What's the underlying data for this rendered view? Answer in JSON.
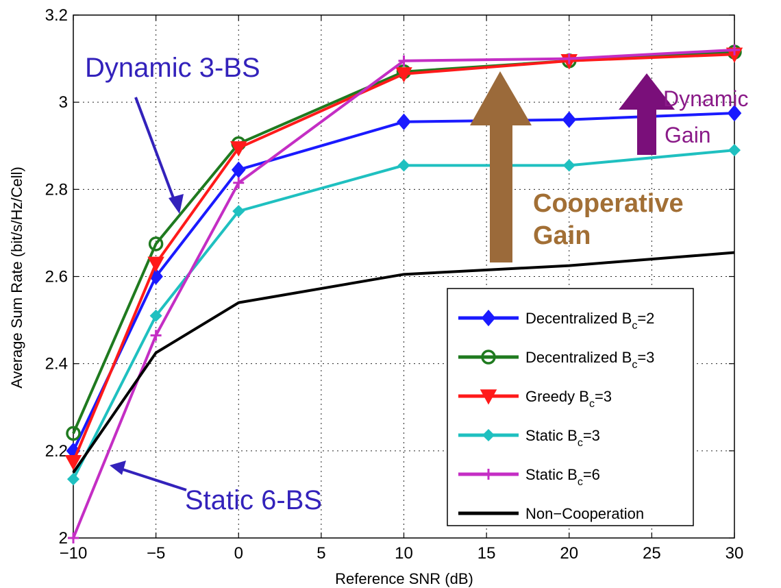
{
  "chart_data": {
    "type": "line",
    "xlabel": "Reference SNR (dB)",
    "ylabel": "Average Sum Rate (bit/s/Hz/Cell)",
    "xlim": [
      -10,
      30
    ],
    "ylim": [
      2,
      3.2
    ],
    "xticks": [
      -10,
      -5,
      0,
      5,
      10,
      15,
      20,
      25,
      30
    ],
    "yticks": [
      2,
      2.2,
      2.4,
      2.6,
      2.8,
      3,
      3.2
    ],
    "xtick_labels": [
      "−10",
      "−5",
      "0",
      "5",
      "10",
      "15",
      "20",
      "25",
      "30"
    ],
    "ytick_labels": [
      "2",
      "2.2",
      "2.4",
      "2.6",
      "2.8",
      "3",
      "3.2"
    ],
    "grid": true,
    "legend_position": "bottom-right",
    "x": [
      -10,
      -5,
      0,
      10,
      20,
      30
    ],
    "series": [
      {
        "name": "Decentralized B",
        "subscript": "c",
        "suffix": "=2",
        "color": "#1a1aff",
        "marker": "diamond",
        "values": [
          2.2,
          2.6,
          2.845,
          2.955,
          2.96,
          2.975
        ]
      },
      {
        "name": "Decentralized B",
        "subscript": "c",
        "suffix": "=3",
        "color": "#1f7a1f",
        "marker": "circle",
        "values": [
          2.24,
          2.675,
          2.905,
          3.07,
          3.095,
          3.115
        ]
      },
      {
        "name": "Greedy B",
        "subscript": "c",
        "suffix": "=3",
        "color": "#ff1a1a",
        "marker": "triangle-down",
        "values": [
          2.175,
          2.63,
          2.895,
          3.065,
          3.095,
          3.11
        ]
      },
      {
        "name": "Static B",
        "subscript": "c",
        "suffix": "=3",
        "color": "#1fc0c0",
        "marker": "diamond-small",
        "values": [
          2.135,
          2.51,
          2.75,
          2.855,
          2.855,
          2.89
        ]
      },
      {
        "name": "Static B",
        "subscript": "c",
        "suffix": "=6",
        "color": "#c42ec4",
        "marker": "plus",
        "values": [
          2.0,
          2.465,
          2.815,
          3.095,
          3.1,
          3.12
        ]
      },
      {
        "name": "Non−Cooperation",
        "subscript": "",
        "suffix": "",
        "color": "#000000",
        "marker": "none",
        "values": [
          2.15,
          2.425,
          2.54,
          2.605,
          2.625,
          2.655
        ]
      }
    ],
    "annotations": [
      {
        "text": "Dynamic 3-BS",
        "color": "#3322bb"
      },
      {
        "text": "Static 6-BS",
        "color": "#3322bb"
      },
      {
        "text": "Cooperative",
        "color": "#a26f35"
      },
      {
        "text": "Gain",
        "color": "#a26f35"
      },
      {
        "text": "Dynamic",
        "color": "#8a1a88"
      },
      {
        "text": "Gain",
        "color": "#8a1a88"
      }
    ],
    "arrow_colors": {
      "blue": "#3322bb",
      "brown": "#9b6a3a",
      "purple": "#7a0f7a"
    }
  }
}
